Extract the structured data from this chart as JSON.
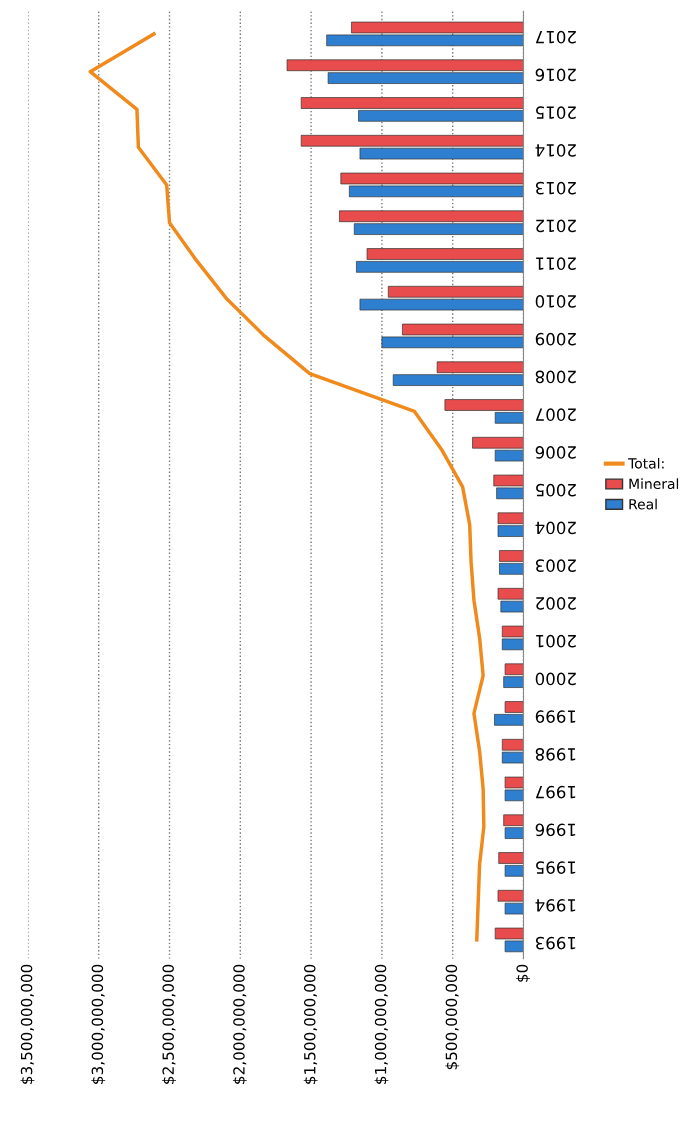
{
  "chart_data": {
    "type": "bar",
    "orientation": "horizontal",
    "categories": [
      "2017",
      "2016",
      "2015",
      "2014",
      "2013",
      "2012",
      "2011",
      "2010",
      "2009",
      "2008",
      "2007",
      "2006",
      "2005",
      "2004",
      "2003",
      "2002",
      "2001",
      "2000",
      "1999",
      "1998",
      "1997",
      "1996",
      "1995",
      "1994",
      "1993"
    ],
    "series": [
      {
        "name": "Real",
        "color": "#2f7fd1",
        "values": [
          1390000000,
          1380000000,
          1165000000,
          1155000000,
          1230000000,
          1195000000,
          1180000000,
          1155000000,
          1000000000,
          920000000,
          200000000,
          200000000,
          190000000,
          180000000,
          170000000,
          160000000,
          150000000,
          140000000,
          205000000,
          150000000,
          130000000,
          130000000,
          130000000,
          130000000,
          130000000
        ]
      },
      {
        "name": "Mineral",
        "color": "#e84c4c",
        "values": [
          1215000000,
          1670000000,
          1570000000,
          1570000000,
          1290000000,
          1300000000,
          1105000000,
          955000000,
          855000000,
          610000000,
          555000000,
          360000000,
          210000000,
          180000000,
          170000000,
          180000000,
          150000000,
          130000000,
          130000000,
          150000000,
          130000000,
          140000000,
          175000000,
          180000000,
          200000000
        ]
      },
      {
        "name": "Total:",
        "type": "line",
        "color": "#f08a1c",
        "values": [
          2610000000,
          3060000000,
          2730000000,
          2720000000,
          2520000000,
          2500000000,
          2310000000,
          2100000000,
          1830000000,
          1510000000,
          770000000,
          580000000,
          430000000,
          380000000,
          370000000,
          350000000,
          310000000,
          285000000,
          350000000,
          310000000,
          285000000,
          280000000,
          310000000,
          320000000,
          330000000
        ]
      }
    ],
    "xlim": [
      3500000000,
      0
    ],
    "xticks": [
      {
        "value": 0,
        "label": "$0"
      },
      {
        "value": 500000000,
        "label": "$500,000,000"
      },
      {
        "value": 1000000000,
        "label": "$1,000,000,000"
      },
      {
        "value": 1500000000,
        "label": "$1,500,000,000"
      },
      {
        "value": 2000000000,
        "label": "$2,000,000,000"
      },
      {
        "value": 2500000000,
        "label": "$2,500,000,000"
      },
      {
        "value": 3000000000,
        "label": "$3,000,000,000"
      },
      {
        "value": 3500000000,
        "label": "$3,500,000,000"
      }
    ],
    "grid": "x",
    "legend": "right"
  }
}
